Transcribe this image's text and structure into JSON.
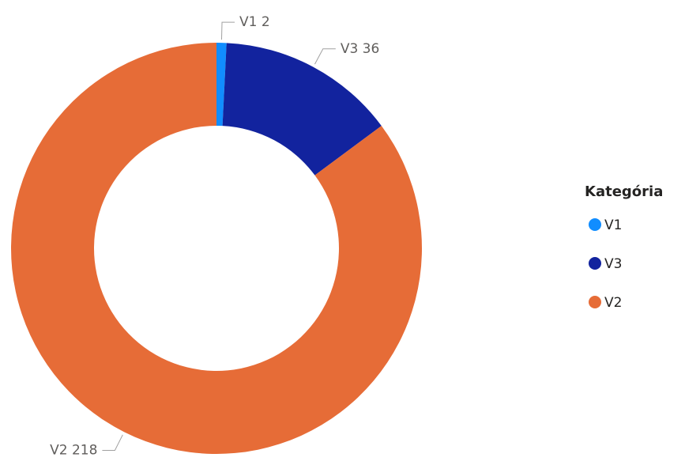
{
  "chart_data": {
    "type": "donut",
    "categories": [
      "V1",
      "V3",
      "V2"
    ],
    "values": [
      2,
      36,
      218
    ],
    "colors": [
      "#118dff",
      "#12239e",
      "#e66c37"
    ],
    "legend_title": "Kategória",
    "legend": "right"
  }
}
